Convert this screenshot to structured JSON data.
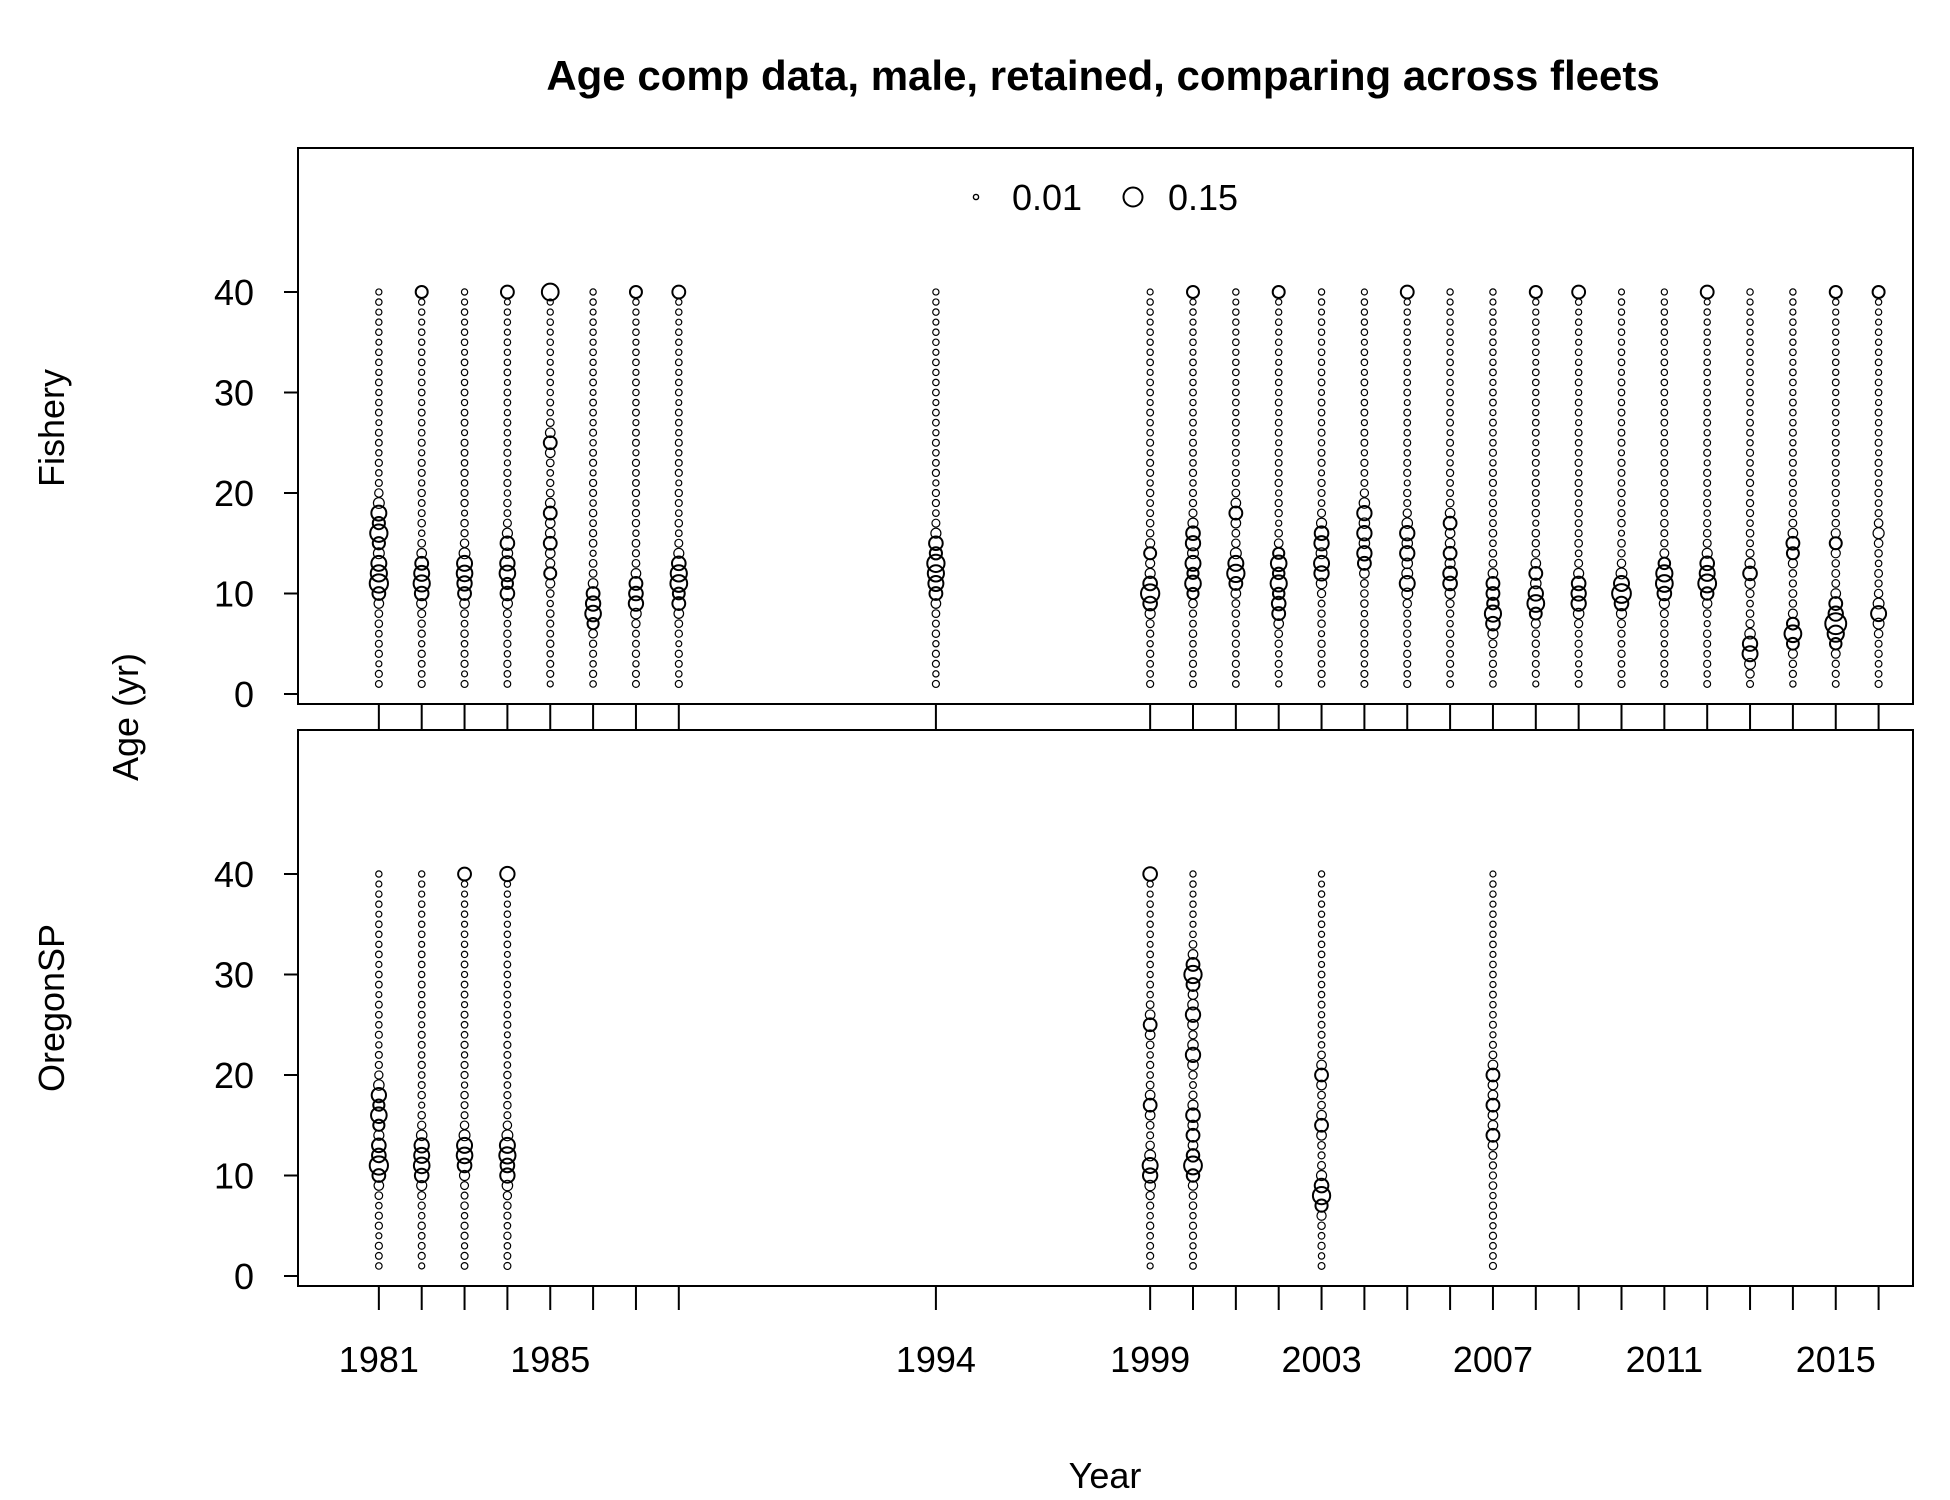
{
  "chart_data": {
    "type": "scatter",
    "title": "Age comp data, male, retained, comparing across fleets",
    "xlabel": "Year",
    "ylabel": "Age (yr)",
    "x_tick_labels": [
      "1981",
      "1985",
      "1994",
      "1999",
      "2003",
      "2007",
      "2011",
      "2015"
    ],
    "y_tick_labels": [
      "0",
      "10",
      "20",
      "30",
      "40"
    ],
    "ylim": [
      0,
      53
    ],
    "legend": {
      "placement": "top-center",
      "entries": [
        "0.01",
        "0.15"
      ]
    },
    "panels": [
      {
        "name": "Fishery",
        "years": [
          1981,
          1982,
          1983,
          1984,
          1985,
          1986,
          1987,
          1988,
          1994,
          1999,
          2000,
          2001,
          2002,
          2003,
          2004,
          2005,
          2006,
          2007,
          2008,
          2009,
          2010,
          2011,
          2012,
          2013,
          2014,
          2015,
          2016
        ],
        "peaks": {
          "1981": [
            [
              11,
              0.14
            ],
            [
              16,
              0.12
            ],
            [
              18,
              0.08
            ],
            [
              12,
              0.1
            ],
            [
              13,
              0.08
            ]
          ],
          "1982": [
            [
              11,
              0.1
            ],
            [
              12,
              0.08
            ],
            [
              10,
              0.06
            ],
            [
              13,
              0.05
            ],
            [
              40,
              0.04
            ]
          ],
          "1983": [
            [
              12,
              0.09
            ],
            [
              13,
              0.08
            ],
            [
              11,
              0.07
            ],
            [
              10,
              0.05
            ]
          ],
          "1984": [
            [
              12,
              0.09
            ],
            [
              13,
              0.07
            ],
            [
              15,
              0.06
            ],
            [
              10,
              0.06
            ],
            [
              40,
              0.05
            ]
          ],
          "1985": [
            [
              40,
              0.11
            ],
            [
              25,
              0.05
            ],
            [
              15,
              0.05
            ],
            [
              18,
              0.05
            ],
            [
              12,
              0.04
            ]
          ],
          "1986": [
            [
              8,
              0.09
            ],
            [
              9,
              0.07
            ],
            [
              10,
              0.05
            ]
          ],
          "1987": [
            [
              9,
              0.07
            ],
            [
              10,
              0.06
            ],
            [
              11,
              0.05
            ],
            [
              40,
              0.04
            ]
          ],
          "1988": [
            [
              11,
              0.11
            ],
            [
              12,
              0.1
            ],
            [
              13,
              0.06
            ],
            [
              40,
              0.05
            ],
            [
              9,
              0.05
            ]
          ],
          "1994": [
            [
              13,
              0.12
            ],
            [
              12,
              0.1
            ],
            [
              11,
              0.08
            ],
            [
              15,
              0.06
            ],
            [
              10,
              0.05
            ]
          ],
          "1999": [
            [
              10,
              0.14
            ],
            [
              9,
              0.06
            ],
            [
              11,
              0.06
            ],
            [
              14,
              0.04
            ]
          ],
          "2000": [
            [
              11,
              0.09
            ],
            [
              13,
              0.08
            ],
            [
              15,
              0.07
            ],
            [
              16,
              0.06
            ],
            [
              40,
              0.04
            ]
          ],
          "2001": [
            [
              12,
              0.12
            ],
            [
              13,
              0.08
            ],
            [
              18,
              0.05
            ],
            [
              11,
              0.05
            ]
          ],
          "2002": [
            [
              11,
              0.1
            ],
            [
              13,
              0.09
            ],
            [
              9,
              0.06
            ],
            [
              8,
              0.05
            ],
            [
              40,
              0.04
            ]
          ],
          "2003": [
            [
              13,
              0.08
            ],
            [
              12,
              0.07
            ],
            [
              15,
              0.07
            ],
            [
              16,
              0.06
            ]
          ],
          "2004": [
            [
              14,
              0.07
            ],
            [
              16,
              0.07
            ],
            [
              18,
              0.07
            ],
            [
              13,
              0.05
            ]
          ],
          "2005": [
            [
              11,
              0.08
            ],
            [
              14,
              0.07
            ],
            [
              16,
              0.07
            ],
            [
              40,
              0.05
            ]
          ],
          "2006": [
            [
              11,
              0.06
            ],
            [
              12,
              0.06
            ],
            [
              14,
              0.05
            ],
            [
              17,
              0.05
            ]
          ],
          "2007": [
            [
              8,
              0.1
            ],
            [
              7,
              0.06
            ],
            [
              10,
              0.05
            ],
            [
              11,
              0.05
            ]
          ],
          "2008": [
            [
              9,
              0.11
            ],
            [
              10,
              0.07
            ],
            [
              12,
              0.05
            ],
            [
              40,
              0.04
            ]
          ],
          "2009": [
            [
              9,
              0.07
            ],
            [
              10,
              0.07
            ],
            [
              11,
              0.06
            ],
            [
              40,
              0.05
            ]
          ],
          "2010": [
            [
              10,
              0.15
            ],
            [
              11,
              0.08
            ],
            [
              9,
              0.06
            ]
          ],
          "2011": [
            [
              11,
              0.11
            ],
            [
              12,
              0.1
            ],
            [
              10,
              0.06
            ]
          ],
          "2012": [
            [
              11,
              0.13
            ],
            [
              12,
              0.08
            ],
            [
              13,
              0.06
            ],
            [
              40,
              0.05
            ]
          ],
          "2013": [
            [
              4,
              0.08
            ],
            [
              5,
              0.07
            ],
            [
              12,
              0.06
            ]
          ],
          "2014": [
            [
              6,
              0.11
            ],
            [
              15,
              0.05
            ],
            [
              14,
              0.04
            ]
          ],
          "2015": [
            [
              7,
              0.2
            ],
            [
              6,
              0.1
            ],
            [
              8,
              0.06
            ],
            [
              9,
              0.05
            ],
            [
              40,
              0.04
            ],
            [
              15,
              0.04
            ]
          ],
          "2016": [
            [
              8,
              0.08
            ],
            [
              40,
              0.04
            ],
            [
              16,
              0.03
            ]
          ]
        }
      },
      {
        "name": "OregonSP",
        "years": [
          1981,
          1982,
          1983,
          1984,
          1999,
          2000,
          2003,
          2007
        ],
        "peaks": {
          "1981": [
            [
              11,
              0.14
            ],
            [
              16,
              0.09
            ],
            [
              18,
              0.07
            ],
            [
              13,
              0.06
            ],
            [
              12,
              0.06
            ]
          ],
          "1982": [
            [
              11,
              0.09
            ],
            [
              12,
              0.08
            ],
            [
              13,
              0.07
            ],
            [
              10,
              0.06
            ]
          ],
          "1983": [
            [
              12,
              0.09
            ],
            [
              13,
              0.08
            ],
            [
              11,
              0.06
            ],
            [
              40,
              0.05
            ]
          ],
          "1984": [
            [
              12,
              0.1
            ],
            [
              13,
              0.08
            ],
            [
              10,
              0.07
            ],
            [
              40,
              0.07
            ],
            [
              11,
              0.06
            ]
          ],
          "1999": [
            [
              11,
              0.08
            ],
            [
              10,
              0.07
            ],
            [
              40,
              0.06
            ],
            [
              25,
              0.05
            ],
            [
              17,
              0.05
            ]
          ],
          "2000": [
            [
              30,
              0.12
            ],
            [
              11,
              0.13
            ],
            [
              26,
              0.07
            ],
            [
              22,
              0.07
            ],
            [
              16,
              0.06
            ],
            [
              14,
              0.05
            ],
            [
              31,
              0.05
            ],
            [
              29,
              0.05
            ]
          ],
          "2003": [
            [
              8,
              0.12
            ],
            [
              9,
              0.06
            ],
            [
              15,
              0.05
            ],
            [
              20,
              0.05
            ]
          ],
          "2007": [
            [
              20,
              0.05
            ],
            [
              17,
              0.05
            ],
            [
              14,
              0.05
            ]
          ]
        },
        "sparse": {
          "2000": [
            [
              1,
              40
            ],
            [
              0.5,
              40
            ]
          ],
          "2007": [
            [
              1,
              40
            ],
            [
              0.6,
              40
            ]
          ]
        }
      }
    ]
  }
}
